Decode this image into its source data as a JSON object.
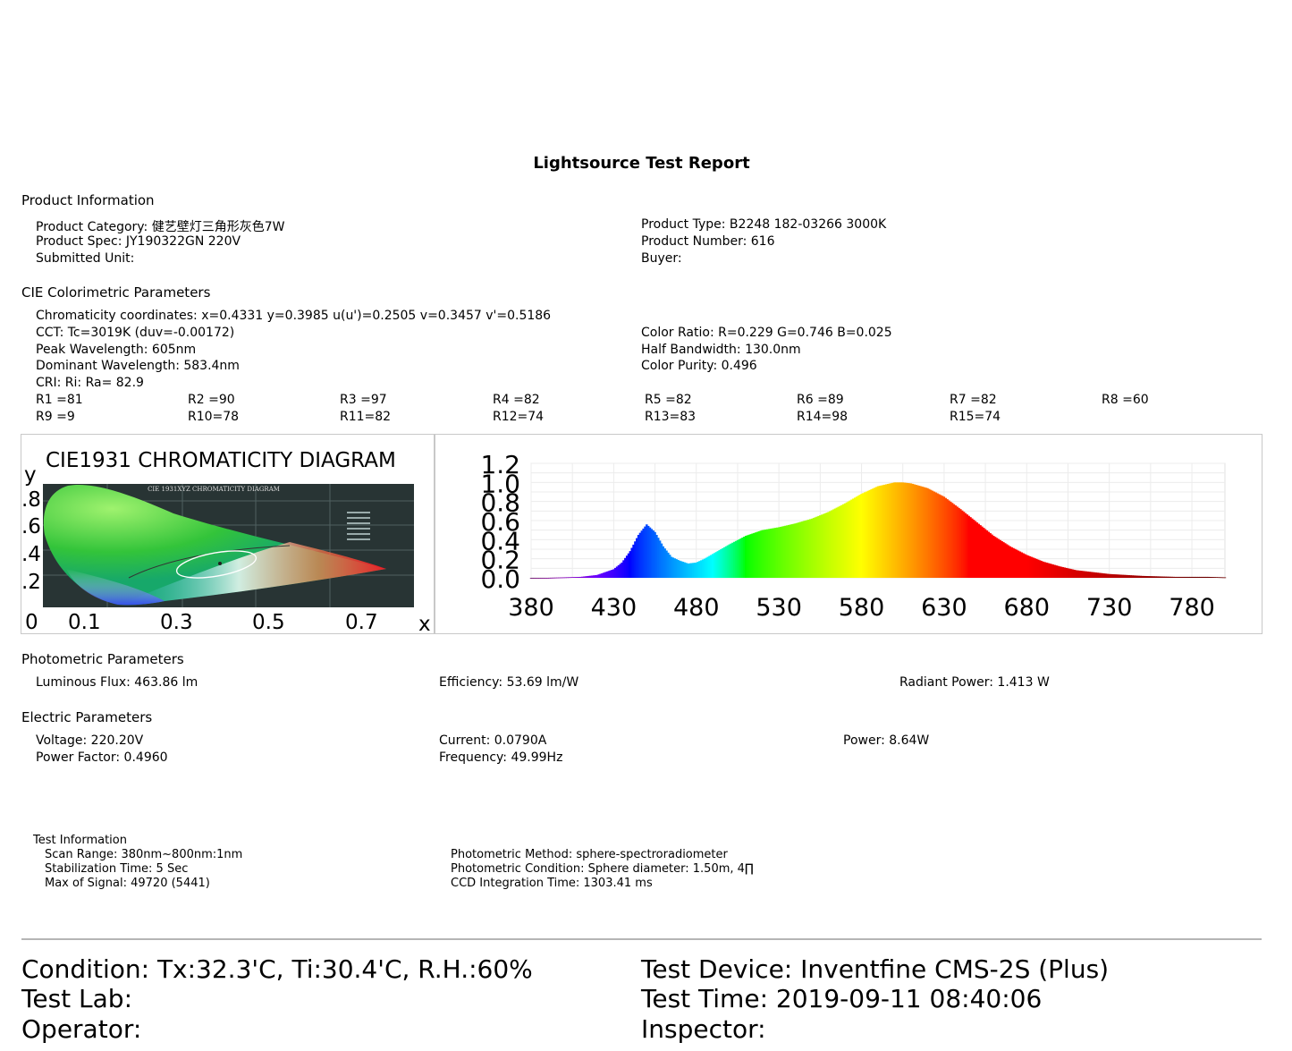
{
  "title": "Lightsource Test Report",
  "product_info": {
    "heading": "Product Information",
    "category": "Product Category: 健艺壁灯三角形灰色7W",
    "spec": "Product Spec: JY190322GN 220V",
    "submitted": "Submitted Unit:",
    "type": "Product Type: B2248 182-03266 3000K",
    "number": "Product Number: 616",
    "buyer": "Buyer:"
  },
  "cie": {
    "heading": "CIE Colorimetric Parameters",
    "chromaticity": "Chromaticity coordinates: x=0.4331 y=0.3985    u(u')=0.2505 v=0.3457 v'=0.5186",
    "cct": "CCT: Tc=3019K (duv=-0.00172)",
    "peak": "Peak Wavelength: 605nm",
    "dominant": "Dominant Wavelength: 583.4nm",
    "cri": "CRI: Ri: Ra= 82.9",
    "color_ratio": "Color Ratio: R=0.229  G=0.746  B=0.025",
    "half_bandwidth": "Half Bandwidth: 130.0nm",
    "purity": "Color Purity: 0.496",
    "r_row1": [
      "R1 =81",
      "R2 =90",
      "R3 =97",
      "R4 =82",
      "R5 =82",
      "R6 =89",
      "R7 =82",
      "R8 =60"
    ],
    "r_row2": [
      "R9 =9",
      "R10=78",
      "R11=82",
      "R12=74",
      "R13=83",
      "R14=98",
      "R15=74"
    ]
  },
  "chromaticity_diagram": {
    "title": "CIE1931 CHROMATICITY DIAGRAM",
    "y_axis_label": "y",
    "x_axis_label": "x",
    "y_ticks": [
      ".8",
      ".6",
      ".4",
      ".2"
    ],
    "x_ticks": [
      "0",
      "0.1",
      "0.3",
      "0.5",
      "0.7"
    ],
    "inner_banner": "CIE 1931XYZ CHROMATICITY DIAGRAM"
  },
  "chart_data": {
    "type": "area",
    "title": "",
    "xlabel": "",
    "ylabel": "",
    "xlim": [
      380,
      800
    ],
    "ylim": [
      0,
      1.2
    ],
    "x_ticks": [
      "380",
      "430",
      "480",
      "530",
      "580",
      "630",
      "680",
      "730",
      "780"
    ],
    "y_ticks": [
      "0.0",
      "0.2",
      "0.4",
      "0.6",
      "0.8",
      "1.0",
      "1.2"
    ],
    "grid": true,
    "x": [
      380,
      390,
      400,
      410,
      420,
      430,
      435,
      440,
      445,
      450,
      455,
      460,
      465,
      470,
      475,
      480,
      485,
      490,
      500,
      510,
      520,
      530,
      540,
      550,
      560,
      570,
      580,
      590,
      600,
      605,
      610,
      620,
      630,
      640,
      650,
      660,
      670,
      680,
      690,
      700,
      710,
      720,
      730,
      740,
      750,
      760,
      770,
      780,
      790,
      800
    ],
    "y": [
      0.0,
      0.0,
      0.005,
      0.01,
      0.03,
      0.09,
      0.16,
      0.28,
      0.45,
      0.56,
      0.48,
      0.33,
      0.22,
      0.18,
      0.15,
      0.16,
      0.2,
      0.25,
      0.35,
      0.44,
      0.5,
      0.53,
      0.57,
      0.62,
      0.69,
      0.78,
      0.88,
      0.96,
      1.0,
      1.0,
      0.99,
      0.94,
      0.85,
      0.72,
      0.58,
      0.44,
      0.33,
      0.24,
      0.17,
      0.12,
      0.08,
      0.06,
      0.04,
      0.03,
      0.02,
      0.015,
      0.01,
      0.01,
      0.01,
      0.005
    ]
  },
  "photometric": {
    "heading": "Photometric Parameters",
    "flux": "Luminous Flux: 463.86 lm",
    "efficiency": "Efficiency: 53.69 lm/W",
    "radiant": "Radiant Power: 1.413 W"
  },
  "electric": {
    "heading": "Electric Parameters",
    "voltage": "Voltage: 220.20V",
    "pf": "Power Factor: 0.4960",
    "current": "Current: 0.0790A",
    "frequency": "Frequency: 49.99Hz",
    "power": "Power: 8.64W"
  },
  "test_info": {
    "heading": "Test Information",
    "scan": "Scan Range: 380nm~800nm:1nm",
    "stabilization": "Stabilization Time: 5 Sec",
    "max_signal": "Max of Signal: 49720 (5441)",
    "method": "Photometric Method: sphere-spectroradiometer",
    "condition": "Photometric Condition: Sphere diameter: 1.50m, 4∏",
    "ccd": "CCD Integration Time: 1303.41 ms"
  },
  "footer": {
    "condition": "Condition: Tx:32.3'C, Ti:30.4'C, R.H.:60%",
    "lab": "Test Lab:",
    "operator": "Operator:",
    "device": "Test Device: Inventfine CMS-2S (Plus)",
    "time": "Test Time: 2019-09-11 08:40:06",
    "inspector": "Inspector:"
  }
}
